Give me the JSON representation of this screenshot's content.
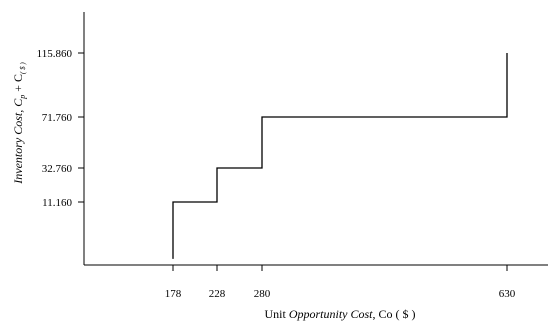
{
  "chart_data": {
    "type": "line",
    "title": "",
    "xlabel": {
      "prefix": "Unit ",
      "italic": "Opportunity Cost",
      "suffix": ", Co ( $ )"
    },
    "ylabel": {
      "italic": "Inventory Cost, C",
      "sub1": "p",
      "mid": " + C",
      "sub2": "( $ )"
    },
    "x_ticks": [
      178,
      228,
      280,
      630
    ],
    "x_tick_labels": [
      "178",
      "228",
      "280",
      "630"
    ],
    "y_ticks": [
      11.16,
      32.76,
      71.76,
      115.86
    ],
    "y_tick_labels": [
      "11.160",
      "32.760",
      "71.760",
      "115.860"
    ],
    "series": [
      {
        "step": "pre",
        "points": [
          {
            "x": 178,
            "y": -25
          },
          {
            "x": 178,
            "y": 11.16
          },
          {
            "x": 228,
            "y": 11.16
          },
          {
            "x": 228,
            "y": 32.76
          },
          {
            "x": 280,
            "y": 32.76
          },
          {
            "x": 280,
            "y": 71.76
          },
          {
            "x": 630,
            "y": 71.76
          },
          {
            "x": 630,
            "y": 115.86
          }
        ]
      }
    ],
    "grid": false,
    "legend": "none"
  }
}
